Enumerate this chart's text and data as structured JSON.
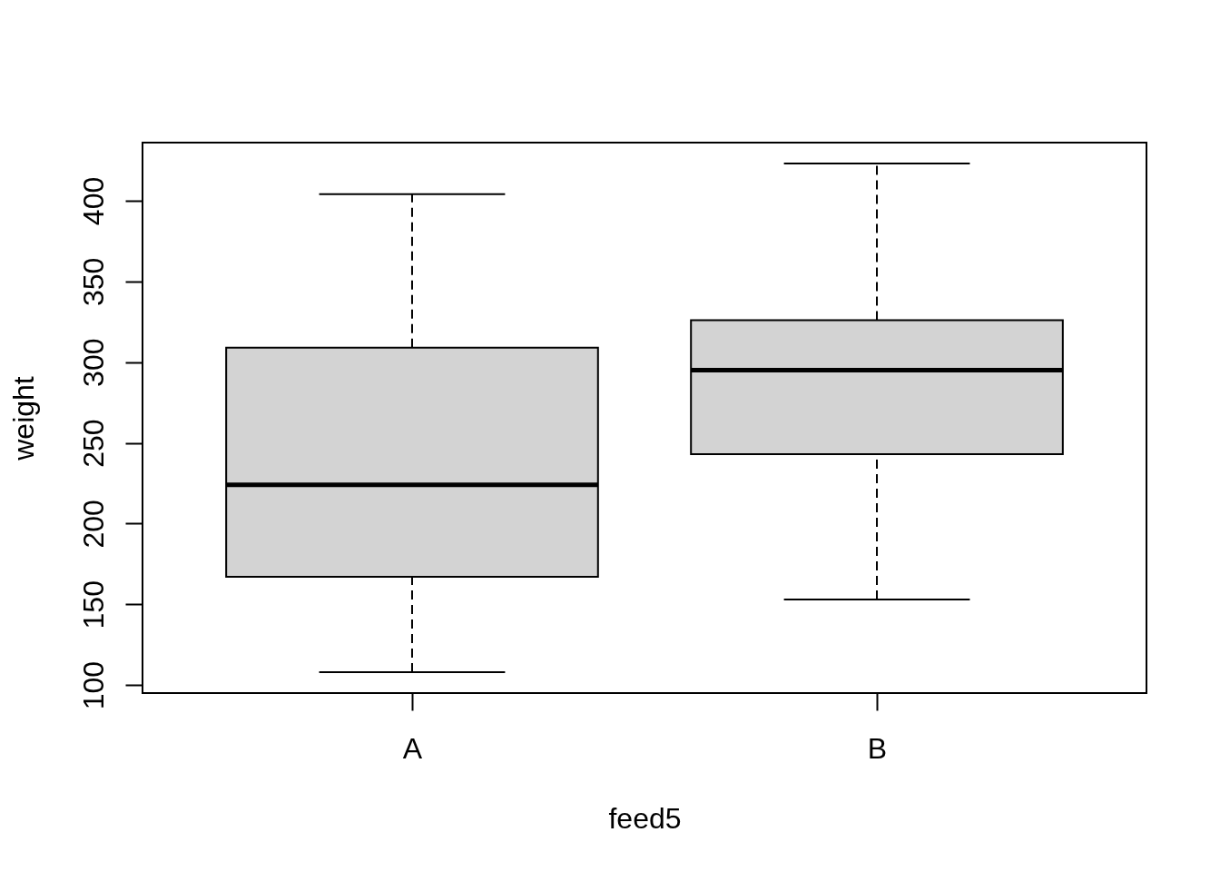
{
  "chart_data": {
    "type": "box",
    "categories": [
      "A",
      "B"
    ],
    "series": [
      {
        "color": "#d3d3d3",
        "boxes": [
          {
            "low": 108,
            "q1": 167,
            "median": 224,
            "q3": 309,
            "high": 404
          },
          {
            "low": 153,
            "q1": 243,
            "median": 295,
            "q3": 326,
            "high": 423
          }
        ]
      }
    ],
    "xlabel": "feed5",
    "ylabel": "weight",
    "ylim": [
      95,
      436
    ],
    "yticks": [
      100,
      150,
      200,
      250,
      300,
      350,
      400
    ],
    "grid": false
  }
}
